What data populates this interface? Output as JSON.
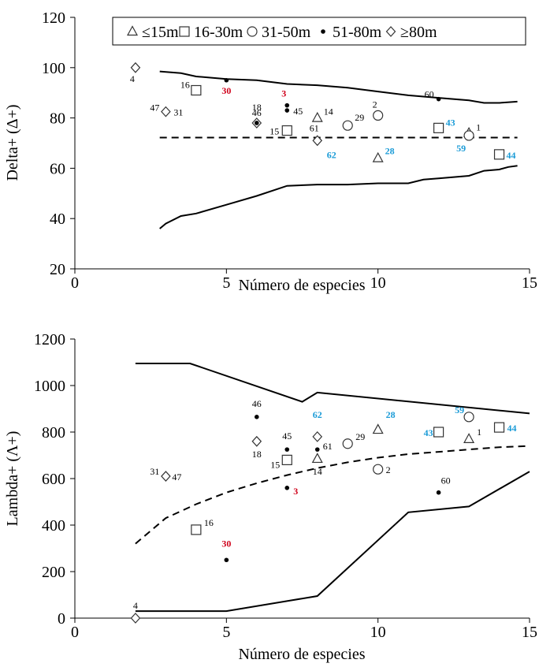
{
  "colors": {
    "black": "#000000",
    "red": "#d0021b",
    "blue": "#1a9bd7"
  },
  "legend": {
    "items": [
      {
        "symbol": "triangle",
        "label": "≤15m"
      },
      {
        "symbol": "square",
        "label": "16-30m"
      },
      {
        "symbol": "circle",
        "label": "31-50m"
      },
      {
        "symbol": "dot",
        "label": "51-80m"
      },
      {
        "symbol": "diamond",
        "label": "≥80m"
      }
    ]
  },
  "chart_data": [
    {
      "type": "scatter",
      "xlabel": "Número de especies",
      "ylabel": "Delta+ (Δ+)",
      "xlim": [
        0,
        15
      ],
      "ylim": [
        20,
        120
      ],
      "xticks": [
        0,
        5,
        10,
        15
      ],
      "yticks": [
        20,
        40,
        60,
        80,
        100,
        120
      ],
      "legend_position": "top",
      "points": [
        {
          "label": "4",
          "x": 2,
          "y": 100,
          "symbol": "diamond",
          "color": "black"
        },
        {
          "label": "47",
          "x": 3,
          "y": 82.5,
          "symbol": "diamond",
          "color": "black"
        },
        {
          "label": "31",
          "x": 3,
          "y": 82.5,
          "symbol": "diamond",
          "color": "black"
        },
        {
          "label": "16",
          "x": 4,
          "y": 91,
          "symbol": "square",
          "color": "black"
        },
        {
          "label": "30",
          "x": 5,
          "y": 95,
          "symbol": "dot",
          "color": "red"
        },
        {
          "label": "18",
          "x": 6,
          "y": 78,
          "symbol": "diamond",
          "color": "black"
        },
        {
          "label": "46",
          "x": 6,
          "y": 78,
          "symbol": "dot",
          "color": "black"
        },
        {
          "label": "3",
          "x": 7,
          "y": 85,
          "symbol": "dot",
          "color": "red"
        },
        {
          "label": "45",
          "x": 7,
          "y": 83,
          "symbol": "dot",
          "color": "black"
        },
        {
          "label": "15",
          "x": 7,
          "y": 75,
          "symbol": "square",
          "color": "black"
        },
        {
          "label": "14",
          "x": 8,
          "y": 80,
          "symbol": "triangle",
          "color": "black"
        },
        {
          "label": "61",
          "x": 8,
          "y": 71,
          "symbol": "dot",
          "color": "black"
        },
        {
          "label": "62",
          "x": 8,
          "y": 71,
          "symbol": "diamond",
          "color": "blue"
        },
        {
          "label": "29",
          "x": 9,
          "y": 77,
          "symbol": "circle",
          "color": "black"
        },
        {
          "label": "2",
          "x": 10,
          "y": 81,
          "symbol": "circle",
          "color": "black"
        },
        {
          "label": "28",
          "x": 10,
          "y": 64,
          "symbol": "triangle",
          "color": "blue"
        },
        {
          "label": "60",
          "x": 12,
          "y": 87.5,
          "symbol": "dot",
          "color": "black"
        },
        {
          "label": "43",
          "x": 12,
          "y": 76,
          "symbol": "square",
          "color": "blue"
        },
        {
          "label": "1",
          "x": 13,
          "y": 74,
          "symbol": "triangle",
          "color": "black"
        },
        {
          "label": "59",
          "x": 13,
          "y": 73,
          "symbol": "circle",
          "color": "blue"
        },
        {
          "label": "44",
          "x": 14,
          "y": 65.5,
          "symbol": "square",
          "color": "blue"
        }
      ],
      "mean_line": {
        "x": [
          2.8,
          14.6
        ],
        "y": [
          72.2,
          72.2
        ]
      },
      "upper_limit": {
        "x": [
          2.8,
          3.5,
          4,
          5,
          6,
          7,
          8,
          9,
          10,
          11,
          12,
          13,
          13.5,
          14,
          14.6
        ],
        "y": [
          98.5,
          97.8,
          96.5,
          95.5,
          95,
          93.5,
          93,
          92,
          90.5,
          89,
          88,
          87,
          86,
          86,
          86.5
        ]
      },
      "lower_limit": {
        "x": [
          2.8,
          3,
          3.5,
          4,
          5,
          6,
          7,
          8,
          9,
          10,
          11,
          11.5,
          12,
          13,
          13.5,
          14,
          14.3,
          14.6
        ],
        "y": [
          36,
          38,
          41,
          42,
          45.5,
          49,
          53,
          53.5,
          53.5,
          54,
          54,
          55.5,
          56,
          57,
          59,
          59.5,
          60.5,
          61
        ]
      }
    },
    {
      "type": "scatter",
      "xlabel": "Número de especies",
      "ylabel": "Lambda+ (Λ+)",
      "xlim": [
        0,
        15
      ],
      "ylim": [
        0,
        1200
      ],
      "xticks": [
        0,
        5,
        10,
        15
      ],
      "yticks": [
        0,
        200,
        400,
        600,
        800,
        1000,
        1200
      ],
      "points": [
        {
          "label": "4",
          "x": 2,
          "y": 0,
          "symbol": "diamond",
          "color": "black"
        },
        {
          "label": "31",
          "x": 3,
          "y": 610,
          "symbol": "diamond",
          "color": "black"
        },
        {
          "label": "47",
          "x": 3,
          "y": 610,
          "symbol": "diamond",
          "color": "black"
        },
        {
          "label": "16",
          "x": 4,
          "y": 380,
          "symbol": "square",
          "color": "black"
        },
        {
          "label": "30",
          "x": 5,
          "y": 250,
          "symbol": "dot",
          "color": "red"
        },
        {
          "label": "46",
          "x": 6,
          "y": 865,
          "symbol": "dot",
          "color": "black"
        },
        {
          "label": "18",
          "x": 6,
          "y": 760,
          "symbol": "diamond",
          "color": "black"
        },
        {
          "label": "45",
          "x": 7,
          "y": 725,
          "symbol": "dot",
          "color": "black"
        },
        {
          "label": "15",
          "x": 7,
          "y": 680,
          "symbol": "square",
          "color": "black"
        },
        {
          "label": "3",
          "x": 7,
          "y": 560,
          "symbol": "dot",
          "color": "red"
        },
        {
          "label": "62",
          "x": 8,
          "y": 780,
          "symbol": "diamond",
          "color": "blue"
        },
        {
          "label": "61",
          "x": 8,
          "y": 725,
          "symbol": "dot",
          "color": "black"
        },
        {
          "label": "14",
          "x": 8,
          "y": 685,
          "symbol": "triangle",
          "color": "black"
        },
        {
          "label": "29",
          "x": 9,
          "y": 750,
          "symbol": "circle",
          "color": "black"
        },
        {
          "label": "28",
          "x": 10,
          "y": 810,
          "symbol": "triangle",
          "color": "blue"
        },
        {
          "label": "2",
          "x": 10,
          "y": 640,
          "symbol": "circle",
          "color": "black"
        },
        {
          "label": "43",
          "x": 12,
          "y": 800,
          "symbol": "square",
          "color": "blue"
        },
        {
          "label": "60",
          "x": 12,
          "y": 540,
          "symbol": "dot",
          "color": "black"
        },
        {
          "label": "59",
          "x": 13,
          "y": 865,
          "symbol": "circle",
          "color": "blue"
        },
        {
          "label": "1",
          "x": 13,
          "y": 770,
          "symbol": "triangle",
          "color": "black"
        },
        {
          "label": "44",
          "x": 14,
          "y": 820,
          "symbol": "square",
          "color": "blue"
        }
      ],
      "mean_line": {
        "x": [
          2,
          3,
          4,
          5,
          6,
          7,
          8,
          9,
          10,
          11,
          12,
          13,
          14,
          15
        ],
        "y": [
          320,
          430,
          490,
          540,
          580,
          615,
          645,
          670,
          690,
          705,
          715,
          725,
          735,
          740
        ]
      },
      "upper_limit": {
        "x": [
          2,
          3.8,
          7.5,
          8,
          15
        ],
        "y": [
          1095,
          1095,
          930,
          970,
          880
        ]
      },
      "lower_limit": {
        "x": [
          2,
          5,
          8,
          11,
          13,
          15
        ],
        "y": [
          30,
          30,
          95,
          455,
          480,
          630
        ]
      }
    }
  ]
}
